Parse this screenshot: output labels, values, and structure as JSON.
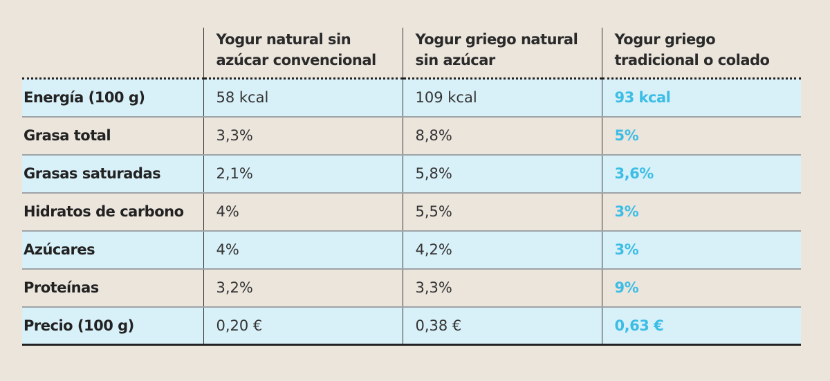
{
  "colors": {
    "accent": "#3cbde6",
    "row_highlight": "#d8f0f8",
    "background": "#ebe5dc"
  },
  "columns": [
    "",
    "Yogur natural sin azúcar convencional",
    "Yogur griego natural sin azúcar",
    "Yogur griego tradicional o colado"
  ],
  "rows": [
    {
      "label": "Energía (100 g)",
      "values": [
        "58 kcal",
        "109 kcal",
        "93 kcal"
      ]
    },
    {
      "label": "Grasa total",
      "values": [
        "3,3%",
        "8,8%",
        "5%"
      ]
    },
    {
      "label": "Grasas saturadas",
      "values": [
        "2,1%",
        "5,8%",
        "3,6%"
      ]
    },
    {
      "label": "Hidratos de carbono",
      "values": [
        "4%",
        "5,5%",
        "3%"
      ]
    },
    {
      "label": "Azúcares",
      "values": [
        "4%",
        "4,2%",
        "3%"
      ]
    },
    {
      "label": "Proteínas",
      "values": [
        "3,2%",
        "3,3%",
        "9%"
      ]
    },
    {
      "label": "Precio (100 g)",
      "values": [
        "0,20 €",
        "0,38 €",
        "0,63 €"
      ]
    }
  ]
}
